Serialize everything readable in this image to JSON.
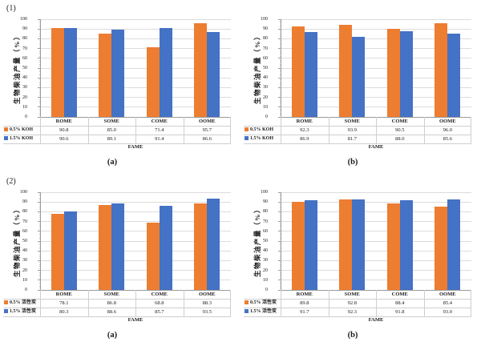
{
  "page": {
    "background": "#ffffff"
  },
  "colors": {
    "series_orange": "#ED7D31",
    "series_blue": "#4472C4",
    "gridline": "#DCDCDC",
    "axis": "#9B9B9B",
    "table_border": "#CFCFCF",
    "text": "#1A1A1A"
  },
  "chart_data": [
    {
      "type": "bar",
      "group_label": "(1)",
      "sub_label": "(a)",
      "ylabel": "生物柴油产量（%）",
      "xlabel": "FAME",
      "ylim": [
        0,
        100
      ],
      "yticks": [
        0,
        10,
        20,
        30,
        40,
        50,
        60,
        70,
        80,
        90,
        100
      ],
      "grid": true,
      "legend_position": "table-left",
      "categories": [
        "ROME",
        "SOME",
        "COME",
        "OOME"
      ],
      "series": [
        {
          "name": "0.5% KOH",
          "color": "#ED7D31",
          "values": [
            90.8,
            85.0,
            71.4,
            95.7
          ]
        },
        {
          "name": "1.5% KOH",
          "color": "#4472C4",
          "values": [
            90.6,
            89.1,
            91.4,
            86.6
          ]
        }
      ]
    },
    {
      "type": "bar",
      "group_label": "",
      "sub_label": "(b)",
      "ylabel": "生物柴油产量（%）",
      "xlabel": "FAME",
      "ylim": [
        0,
        100
      ],
      "yticks": [
        0,
        10,
        20,
        30,
        40,
        50,
        60,
        70,
        80,
        90,
        100
      ],
      "grid": true,
      "legend_position": "table-left",
      "categories": [
        "ROME",
        "SOME",
        "COME",
        "OOME"
      ],
      "series": [
        {
          "name": "0.5% KOH",
          "color": "#ED7D31",
          "values": [
            92.3,
            93.9,
            90.5,
            96.0
          ]
        },
        {
          "name": "1.5% KOH",
          "color": "#4472C4",
          "values": [
            86.9,
            81.7,
            88.0,
            85.6
          ]
        }
      ]
    },
    {
      "type": "bar",
      "group_label": "(2)",
      "sub_label": "(a)",
      "ylabel": "生物柴油产量（%）",
      "xlabel": "FAME",
      "ylim": [
        0,
        100
      ],
      "yticks": [
        0,
        10,
        20,
        30,
        40,
        50,
        60,
        70,
        80,
        90,
        100
      ],
      "grid": true,
      "legend_position": "table-left",
      "categories": [
        "ROME",
        "SOME",
        "COME",
        "OOME"
      ],
      "series": [
        {
          "name": "0.5% 活性炭",
          "color": "#ED7D31",
          "values": [
            78.1,
            86.8,
            68.8,
            88.3
          ]
        },
        {
          "name": "1.5% 活性炭",
          "color": "#4472C4",
          "values": [
            80.3,
            88.6,
            85.7,
            93.5
          ]
        }
      ]
    },
    {
      "type": "bar",
      "group_label": "",
      "sub_label": "(b)",
      "ylabel": "生物柴油产量（%）",
      "xlabel": "FAME",
      "ylim": [
        0,
        100
      ],
      "yticks": [
        0,
        10,
        20,
        30,
        40,
        50,
        60,
        70,
        80,
        90,
        100
      ],
      "grid": true,
      "legend_position": "table-left",
      "categories": [
        "ROME",
        "SOME",
        "COME",
        "OOME"
      ],
      "series": [
        {
          "name": "0.5% 活性炭",
          "color": "#ED7D31",
          "values": [
            89.8,
            92.8,
            88.4,
            85.4
          ]
        },
        {
          "name": "1.5% 活性炭",
          "color": "#4472C4",
          "values": [
            91.7,
            92.3,
            91.8,
            93.0
          ]
        }
      ]
    }
  ]
}
